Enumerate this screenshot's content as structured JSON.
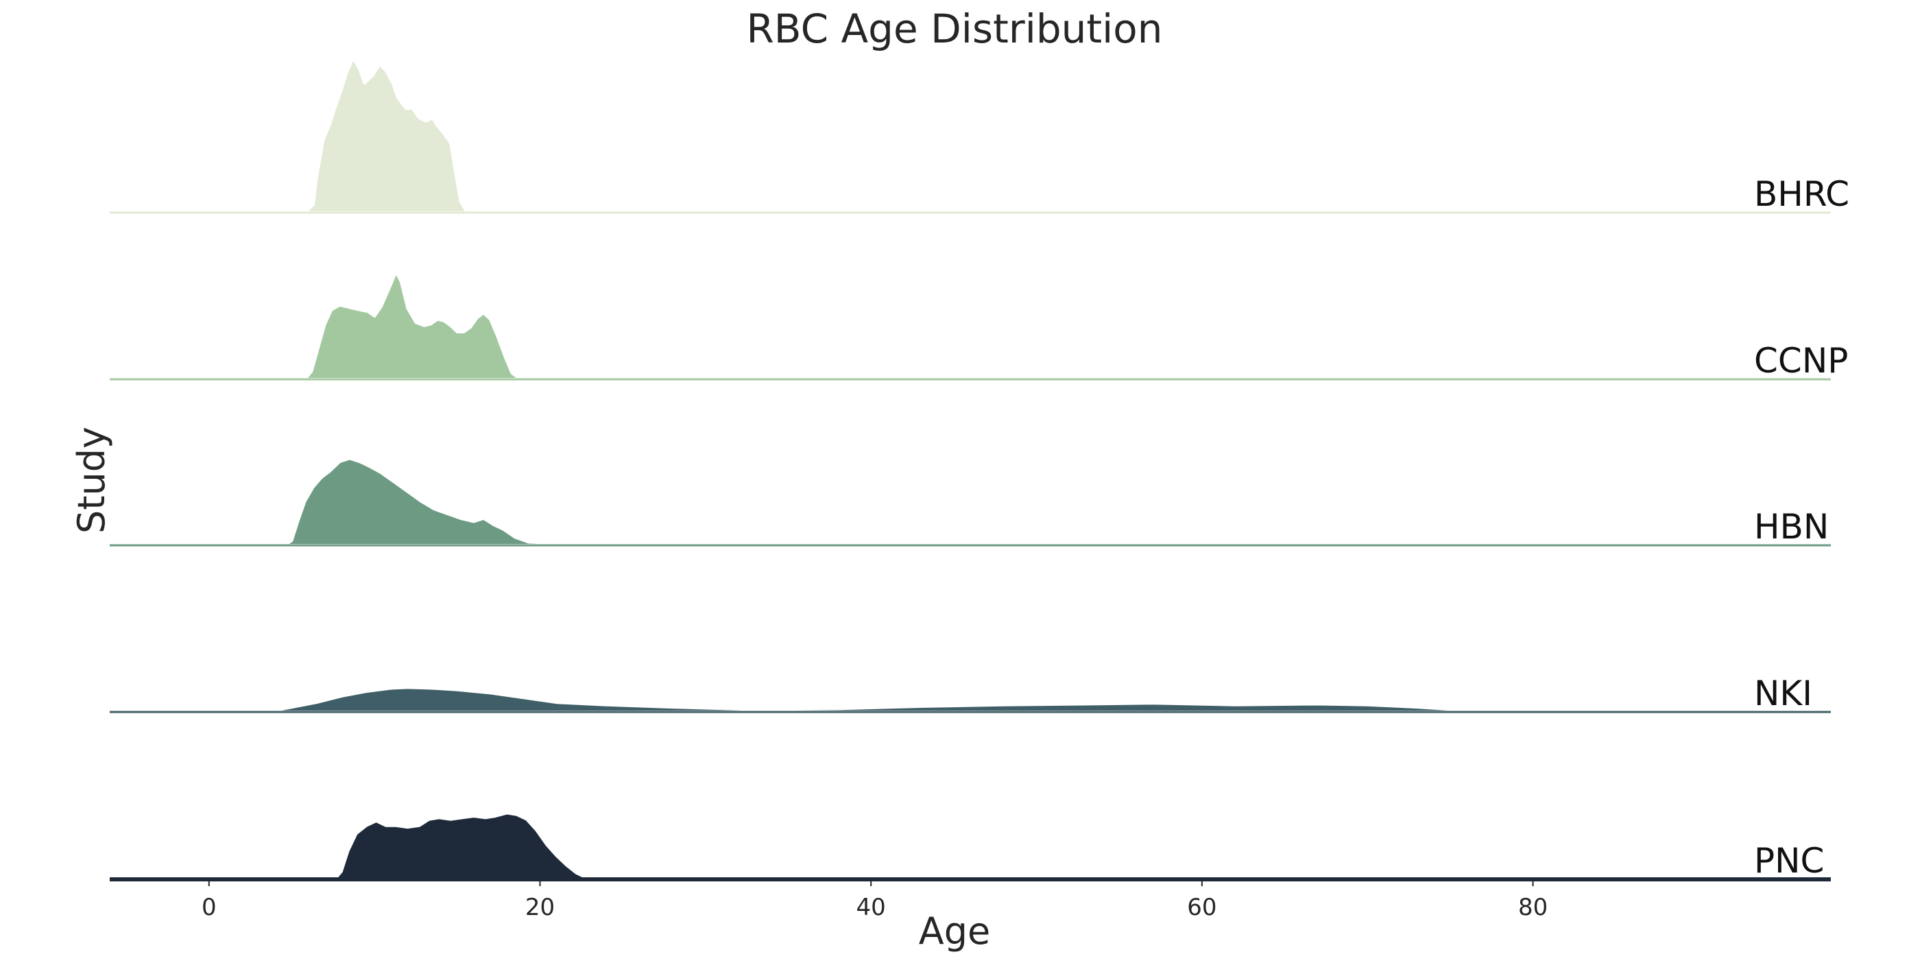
{
  "chart_data": {
    "type": "area",
    "title": "RBC Age Distribution",
    "xlabel": "Age",
    "ylabel": "Study",
    "xlim": [
      -6,
      98
    ],
    "x_ticks": [
      0,
      20,
      40,
      60,
      80
    ],
    "grid": false,
    "legend": "none",
    "series": [
      {
        "name": "BHRC",
        "color": "#e2ead6",
        "points": [
          [
            5.8,
            0
          ],
          [
            6.3,
            0.05
          ],
          [
            6.5,
            0.22
          ],
          [
            6.9,
            0.46
          ],
          [
            7.3,
            0.56
          ],
          [
            7.6,
            0.66
          ],
          [
            8.0,
            0.78
          ],
          [
            8.3,
            0.88
          ],
          [
            8.7,
            0.98
          ],
          [
            9.1,
            0.91
          ],
          [
            9.4,
            0.82
          ],
          [
            9.9,
            0.87
          ],
          [
            10.3,
            0.94
          ],
          [
            10.7,
            0.9
          ],
          [
            11.1,
            0.82
          ],
          [
            11.4,
            0.73
          ],
          [
            11.9,
            0.66
          ],
          [
            12.3,
            0.66
          ],
          [
            12.7,
            0.6
          ],
          [
            13.1,
            0.58
          ],
          [
            13.5,
            0.6
          ],
          [
            13.8,
            0.55
          ],
          [
            14.2,
            0.5
          ],
          [
            14.6,
            0.44
          ],
          [
            14.9,
            0.25
          ],
          [
            15.2,
            0.07
          ],
          [
            15.6,
            0
          ]
        ]
      },
      {
        "name": "CCNP",
        "color": "#a3c8a0",
        "points": [
          [
            5.8,
            0
          ],
          [
            6.2,
            0.05
          ],
          [
            6.6,
            0.2
          ],
          [
            7.0,
            0.35
          ],
          [
            7.4,
            0.44
          ],
          [
            7.9,
            0.47
          ],
          [
            8.3,
            0.46
          ],
          [
            8.7,
            0.45
          ],
          [
            9.1,
            0.44
          ],
          [
            9.6,
            0.43
          ],
          [
            10.0,
            0.4
          ],
          [
            10.4,
            0.46
          ],
          [
            10.9,
            0.58
          ],
          [
            11.3,
            0.68
          ],
          [
            11.6,
            0.62
          ],
          [
            12.0,
            0.45
          ],
          [
            12.5,
            0.36
          ],
          [
            13.0,
            0.34
          ],
          [
            13.4,
            0.35
          ],
          [
            13.8,
            0.38
          ],
          [
            14.2,
            0.37
          ],
          [
            14.6,
            0.34
          ],
          [
            15.0,
            0.3
          ],
          [
            15.4,
            0.3
          ],
          [
            15.8,
            0.33
          ],
          [
            16.2,
            0.39
          ],
          [
            16.6,
            0.42
          ],
          [
            17.0,
            0.38
          ],
          [
            17.4,
            0.28
          ],
          [
            17.9,
            0.14
          ],
          [
            18.3,
            0.04
          ],
          [
            18.8,
            0
          ]
        ]
      },
      {
        "name": "HBN",
        "color": "#6c9a82",
        "points": [
          [
            4.6,
            0
          ],
          [
            5.0,
            0.03
          ],
          [
            5.4,
            0.16
          ],
          [
            5.8,
            0.28
          ],
          [
            6.3,
            0.37
          ],
          [
            6.8,
            0.43
          ],
          [
            7.3,
            0.47
          ],
          [
            7.9,
            0.53
          ],
          [
            8.5,
            0.55
          ],
          [
            9.1,
            0.53
          ],
          [
            9.7,
            0.5
          ],
          [
            10.4,
            0.46
          ],
          [
            11.2,
            0.4
          ],
          [
            12.0,
            0.34
          ],
          [
            12.8,
            0.28
          ],
          [
            13.6,
            0.23
          ],
          [
            14.4,
            0.2
          ],
          [
            15.2,
            0.17
          ],
          [
            16.0,
            0.15
          ],
          [
            16.6,
            0.17
          ],
          [
            17.2,
            0.13
          ],
          [
            17.8,
            0.1
          ],
          [
            18.5,
            0.05
          ],
          [
            19.3,
            0.02
          ],
          [
            21.2,
            0.01
          ],
          [
            21.8,
            0
          ]
        ]
      },
      {
        "name": "NKI",
        "color": "#405e67",
        "points": [
          [
            3.5,
            0
          ],
          [
            5.0,
            0.03
          ],
          [
            6.5,
            0.06
          ],
          [
            8.0,
            0.1
          ],
          [
            9.5,
            0.13
          ],
          [
            11.0,
            0.15
          ],
          [
            12.0,
            0.155
          ],
          [
            13.5,
            0.15
          ],
          [
            15.0,
            0.14
          ],
          [
            17.0,
            0.12
          ],
          [
            19.0,
            0.09
          ],
          [
            21.0,
            0.06
          ],
          [
            24.0,
            0.045
          ],
          [
            28.0,
            0.03
          ],
          [
            33.0,
            0.015
          ],
          [
            38.0,
            0.02
          ],
          [
            43.0,
            0.035
          ],
          [
            48.0,
            0.045
          ],
          [
            53.0,
            0.05
          ],
          [
            57.0,
            0.055
          ],
          [
            62.0,
            0.045
          ],
          [
            67.0,
            0.05
          ],
          [
            70.0,
            0.045
          ],
          [
            73.0,
            0.03
          ],
          [
            76.0,
            0.01
          ],
          [
            78.0,
            0
          ]
        ]
      },
      {
        "name": "PNC",
        "color": "#1e2a3a",
        "points": [
          [
            7.6,
            0
          ],
          [
            8.0,
            0.05
          ],
          [
            8.4,
            0.18
          ],
          [
            8.9,
            0.29
          ],
          [
            9.5,
            0.34
          ],
          [
            10.1,
            0.37
          ],
          [
            10.7,
            0.34
          ],
          [
            11.3,
            0.34
          ],
          [
            12.0,
            0.33
          ],
          [
            12.7,
            0.34
          ],
          [
            13.3,
            0.38
          ],
          [
            13.9,
            0.39
          ],
          [
            14.6,
            0.38
          ],
          [
            15.3,
            0.39
          ],
          [
            16.0,
            0.4
          ],
          [
            16.7,
            0.39
          ],
          [
            17.3,
            0.4
          ],
          [
            18.0,
            0.42
          ],
          [
            18.6,
            0.41
          ],
          [
            19.2,
            0.38
          ],
          [
            19.8,
            0.31
          ],
          [
            20.4,
            0.22
          ],
          [
            21.0,
            0.15
          ],
          [
            21.6,
            0.09
          ],
          [
            22.2,
            0.04
          ],
          [
            22.8,
            0.01
          ],
          [
            23.5,
            0
          ]
        ]
      }
    ]
  }
}
